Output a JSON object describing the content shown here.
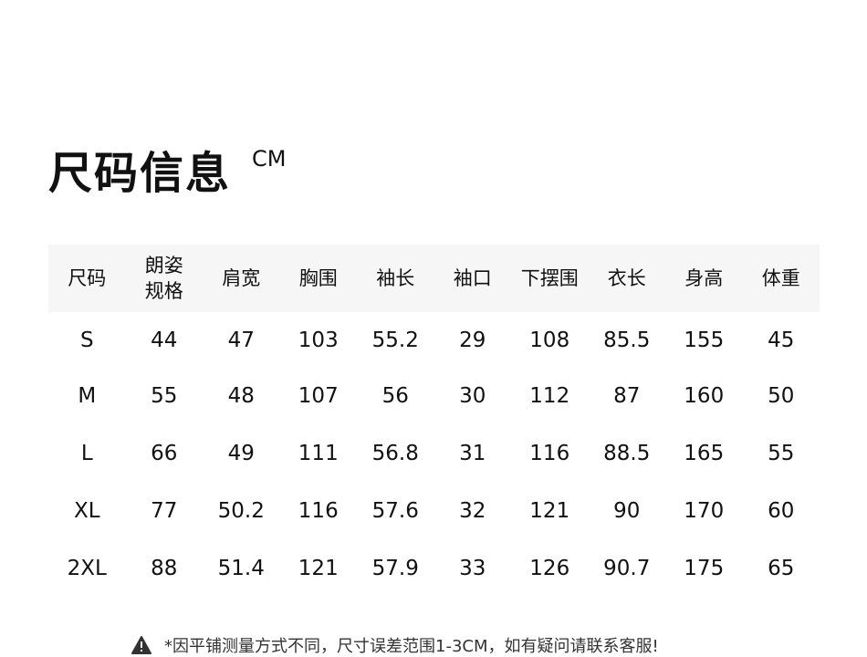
{
  "title": "尺码信息",
  "unit": "CM",
  "table": {
    "headers": [
      "尺码",
      "朗姿规格",
      "肩宽",
      "胸围",
      "袖长",
      "袖口",
      "下摆围",
      "衣长",
      "身高",
      "体重"
    ],
    "rows": [
      [
        "S",
        "44",
        "47",
        "103",
        "55.2",
        "29",
        "108",
        "85.5",
        "155",
        "45"
      ],
      [
        "M",
        "55",
        "48",
        "107",
        "56",
        "30",
        "112",
        "87",
        "160",
        "50"
      ],
      [
        "L",
        "66",
        "49",
        "111",
        "56.8",
        "31",
        "116",
        "88.5",
        "165",
        "55"
      ],
      [
        "XL",
        "77",
        "50.2",
        "116",
        "57.6",
        "32",
        "121",
        "90",
        "170",
        "60"
      ],
      [
        "2XL",
        "88",
        "51.4",
        "121",
        "57.9",
        "33",
        "126",
        "90.7",
        "175",
        "65"
      ]
    ]
  },
  "note": {
    "icon": "warning-icon",
    "text": "*因平铺测量方式不同，尺寸误差范围1-3CM，如有疑问请联系客服!"
  }
}
